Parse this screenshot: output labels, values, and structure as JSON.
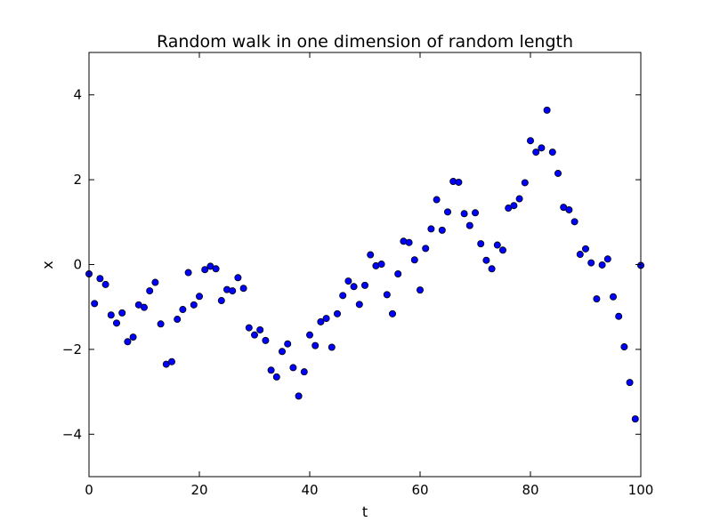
{
  "chart_data": {
    "type": "scatter",
    "title": "Random walk in one dimension of random length",
    "xlabel": "t",
    "ylabel": "x",
    "xlim": [
      0,
      100
    ],
    "ylim": [
      -5,
      5
    ],
    "xticks": [
      0,
      20,
      40,
      60,
      80,
      100
    ],
    "yticks": [
      -4,
      -2,
      0,
      2,
      4
    ],
    "grid": false,
    "marker_color": "#0000ff",
    "marker_edge_color": "#000000",
    "points": [
      [
        0,
        -0.22
      ],
      [
        1,
        -0.92
      ],
      [
        2,
        -0.33
      ],
      [
        3,
        -0.47
      ],
      [
        4,
        -1.19
      ],
      [
        5,
        -1.38
      ],
      [
        6,
        -1.14
      ],
      [
        7,
        -1.82
      ],
      [
        8,
        -1.71
      ],
      [
        9,
        -0.95
      ],
      [
        10,
        -1.01
      ],
      [
        11,
        -0.62
      ],
      [
        12,
        -0.42
      ],
      [
        13,
        -1.4
      ],
      [
        14,
        -2.35
      ],
      [
        15,
        -2.29
      ],
      [
        16,
        -1.29
      ],
      [
        17,
        -1.06
      ],
      [
        18,
        -0.19
      ],
      [
        19,
        -0.95
      ],
      [
        20,
        -0.75
      ],
      [
        21,
        -0.12
      ],
      [
        22,
        -0.04
      ],
      [
        23,
        -0.1
      ],
      [
        24,
        -0.85
      ],
      [
        25,
        -0.59
      ],
      [
        26,
        -0.62
      ],
      [
        27,
        -0.31
      ],
      [
        28,
        -0.56
      ],
      [
        29,
        -1.49
      ],
      [
        30,
        -1.66
      ],
      [
        31,
        -1.54
      ],
      [
        32,
        -1.79
      ],
      [
        33,
        -2.49
      ],
      [
        34,
        -2.65
      ],
      [
        35,
        -2.05
      ],
      [
        36,
        -1.87
      ],
      [
        37,
        -2.43
      ],
      [
        38,
        -3.1
      ],
      [
        39,
        -2.53
      ],
      [
        40,
        -1.66
      ],
      [
        41,
        -1.91
      ],
      [
        42,
        -1.35
      ],
      [
        43,
        -1.27
      ],
      [
        44,
        -1.95
      ],
      [
        45,
        -1.16
      ],
      [
        46,
        -0.73
      ],
      [
        47,
        -0.39
      ],
      [
        48,
        -0.52
      ],
      [
        49,
        -0.94
      ],
      [
        50,
        -0.49
      ],
      [
        51,
        0.23
      ],
      [
        52,
        -0.03
      ],
      [
        53,
        0.01
      ],
      [
        54,
        -0.71
      ],
      [
        55,
        -1.16
      ],
      [
        56,
        -0.22
      ],
      [
        57,
        0.55
      ],
      [
        58,
        0.52
      ],
      [
        59,
        0.11
      ],
      [
        60,
        -0.6
      ],
      [
        61,
        0.38
      ],
      [
        62,
        0.84
      ],
      [
        63,
        1.53
      ],
      [
        64,
        0.81
      ],
      [
        65,
        1.24
      ],
      [
        66,
        1.96
      ],
      [
        67,
        1.94
      ],
      [
        68,
        1.2
      ],
      [
        69,
        0.92
      ],
      [
        70,
        1.22
      ],
      [
        71,
        0.49
      ],
      [
        72,
        0.1
      ],
      [
        73,
        -0.1
      ],
      [
        74,
        0.46
      ],
      [
        75,
        0.34
      ],
      [
        76,
        1.33
      ],
      [
        77,
        1.39
      ],
      [
        78,
        1.55
      ],
      [
        79,
        1.93
      ],
      [
        80,
        2.92
      ],
      [
        81,
        2.65
      ],
      [
        82,
        2.75
      ],
      [
        83,
        3.64
      ],
      [
        84,
        2.65
      ],
      [
        85,
        2.15
      ],
      [
        86,
        1.35
      ],
      [
        87,
        1.29
      ],
      [
        88,
        1.01
      ],
      [
        89,
        0.24
      ],
      [
        90,
        0.37
      ],
      [
        91,
        0.04
      ],
      [
        92,
        -0.81
      ],
      [
        93,
        -0.01
      ],
      [
        94,
        0.13
      ],
      [
        95,
        -0.76
      ],
      [
        96,
        -1.22
      ],
      [
        97,
        -1.94
      ],
      [
        98,
        -2.78
      ],
      [
        99,
        -3.64
      ],
      [
        100,
        -0.02
      ]
    ]
  }
}
